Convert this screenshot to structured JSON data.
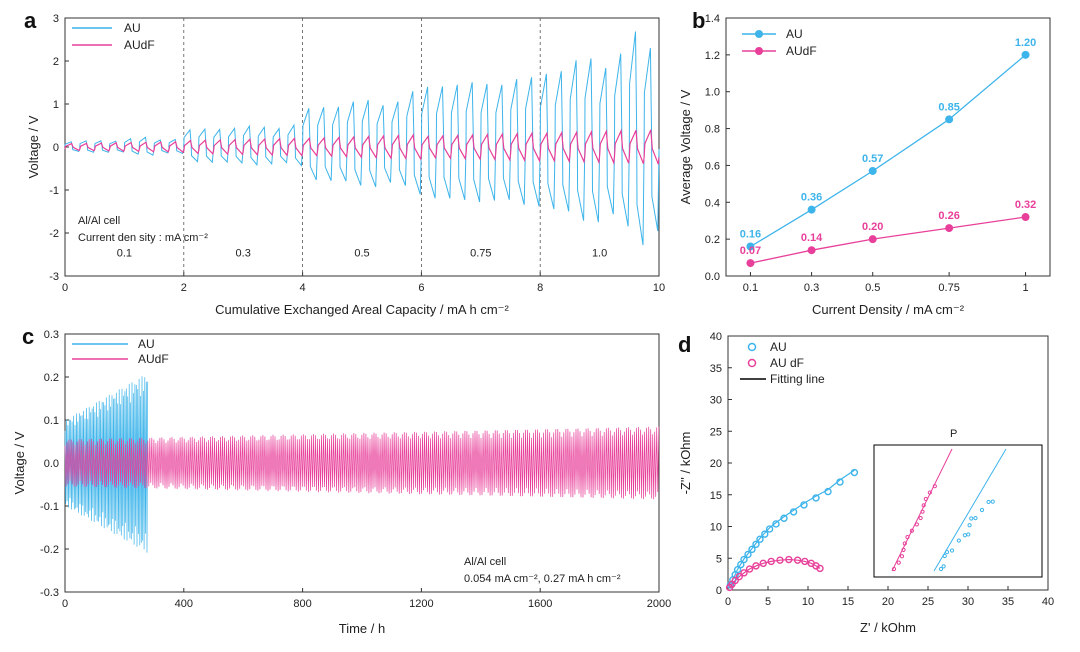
{
  "colors": {
    "au": "#3db4ea",
    "audf": "#e8409a",
    "fit": "#000000"
  },
  "chart_data": [
    {
      "panel": "a",
      "type": "line",
      "xlabel": "Cumulative Exchanged Areal Capacity / mA h cm⁻²",
      "ylabel": "Voltage / V",
      "xlim": [
        0,
        10
      ],
      "ylim": [
        -3,
        3
      ],
      "xticks": [
        "0",
        "2",
        "4",
        "6",
        "8",
        "10"
      ],
      "yticks": [
        "-3",
        "-2",
        "-1",
        "0",
        "1",
        "2",
        "3"
      ],
      "dividers": [
        2,
        4,
        6,
        8
      ],
      "segment_labels": [
        {
          "x": 1,
          "label": "0.1"
        },
        {
          "x": 3,
          "label": "0.3"
        },
        {
          "x": 5,
          "label": "0.5"
        },
        {
          "x": 7,
          "label": "0.75"
        },
        {
          "x": 9,
          "label": "1.0"
        }
      ],
      "annotation": [
        "Al/Al cell",
        "Current den sity : mA cm⁻²"
      ],
      "segments": [
        {
          "range": [
            0,
            2
          ],
          "cycles": 8,
          "au_amp": [
            0.12,
            0.28
          ],
          "audf_amp": [
            0.08,
            0.12
          ]
        },
        {
          "range": [
            2,
            4
          ],
          "cycles": 8,
          "au_amp": [
            0.4,
            0.55
          ],
          "audf_amp": [
            0.15,
            0.2
          ]
        },
        {
          "range": [
            4,
            6
          ],
          "cycles": 8,
          "au_amp": [
            0.9,
            1.3
          ],
          "audf_amp": [
            0.2,
            0.28
          ]
        },
        {
          "range": [
            6,
            8
          ],
          "cycles": 8,
          "au_amp": [
            1.4,
            1.65
          ],
          "audf_amp": [
            0.25,
            0.32
          ]
        },
        {
          "range": [
            8,
            10
          ],
          "cycles": 8,
          "au_amp": [
            1.7,
            2.85
          ],
          "audf_amp": [
            0.32,
            0.4
          ]
        }
      ],
      "series": [
        {
          "name": "AU"
        },
        {
          "name": "AUdF"
        }
      ]
    },
    {
      "panel": "b",
      "type": "line",
      "xlabel": "Current Density / mA cm⁻²",
      "ylabel": "Average Voltage / V",
      "xlim": [
        0.02,
        1.08
      ],
      "ylim": [
        0,
        1.4
      ],
      "x": [
        0.1,
        0.3,
        0.5,
        0.75,
        1
      ],
      "xticks": [
        "0.1",
        "0.3",
        "0.5",
        "0.75",
        "1"
      ],
      "yticks": [
        "0.0",
        "0.2",
        "0.4",
        "0.6",
        "0.8",
        "1.0",
        "1.2",
        "1.4"
      ],
      "series": [
        {
          "name": "AU",
          "values": [
            0.16,
            0.36,
            0.57,
            0.85,
            1.2
          ],
          "labels": [
            "0.16",
            "0.36",
            "0.57",
            "0.85",
            "1.20"
          ]
        },
        {
          "name": "AUdF",
          "values": [
            0.07,
            0.14,
            0.2,
            0.26,
            0.32
          ],
          "labels": [
            "0.07",
            "0.14",
            "0.20",
            "0.26",
            "0.32"
          ]
        }
      ]
    },
    {
      "panel": "c",
      "type": "line",
      "xlabel": "Time / h",
      "ylabel": "Voltage / V",
      "xlim": [
        0,
        2000
      ],
      "ylim": [
        -0.3,
        0.3
      ],
      "xticks": [
        "0",
        "400",
        "800",
        "1200",
        "1600",
        "2000"
      ],
      "yticks": [
        "-0.3",
        "-0.2",
        "-0.1",
        "0.0",
        "0.1",
        "0.2",
        "0.3"
      ],
      "annotation": [
        "Al/Al cell",
        "0.054 mA cm⁻², 0.27 mA h cm⁻²"
      ],
      "series": [
        {
          "name": "AU",
          "t_end": 280,
          "amp_start": 0.1,
          "amp_end": 0.21
        },
        {
          "name": "AUdF",
          "t_end": 2000,
          "amp_start": 0.055,
          "amp_end": 0.085
        }
      ]
    },
    {
      "panel": "d",
      "type": "scatter",
      "xlabel": "Z' / kOhm",
      "ylabel": "-Z'' / kOhm",
      "xlim": [
        0,
        40
      ],
      "ylim": [
        0,
        40
      ],
      "xticks": [
        "0",
        "5",
        "10",
        "15",
        "20",
        "25",
        "30",
        "35",
        "40"
      ],
      "yticks": [
        "0",
        "5",
        "10",
        "15",
        "20",
        "25",
        "30",
        "35",
        "40"
      ],
      "series": [
        {
          "name": "AU",
          "x": [
            0.3,
            0.6,
            0.9,
            1.2,
            1.6,
            2.0,
            2.5,
            3.0,
            3.5,
            4.0,
            4.6,
            5.2,
            6.0,
            7.0,
            8.2,
            9.5,
            11.0,
            12.5,
            14.0,
            15.8
          ],
          "y": [
            0.8,
            1.6,
            2.4,
            3.2,
            4.0,
            4.8,
            5.6,
            6.4,
            7.2,
            8.0,
            8.8,
            9.6,
            10.4,
            11.3,
            12.3,
            13.4,
            14.5,
            15.5,
            17.0,
            18.5
          ]
        },
        {
          "name": "AU dF",
          "x": [
            0.2,
            0.5,
            0.9,
            1.4,
            2.0,
            2.7,
            3.5,
            4.4,
            5.4,
            6.5,
            7.6,
            8.7,
            9.6,
            10.4,
            11.0,
            11.5
          ],
          "y": [
            0.4,
            0.9,
            1.5,
            2.1,
            2.7,
            3.3,
            3.8,
            4.2,
            4.5,
            4.7,
            4.8,
            4.7,
            4.5,
            4.2,
            3.8,
            3.4
          ]
        },
        {
          "name": "Fitting line"
        }
      ],
      "inset_title": "P"
    }
  ]
}
